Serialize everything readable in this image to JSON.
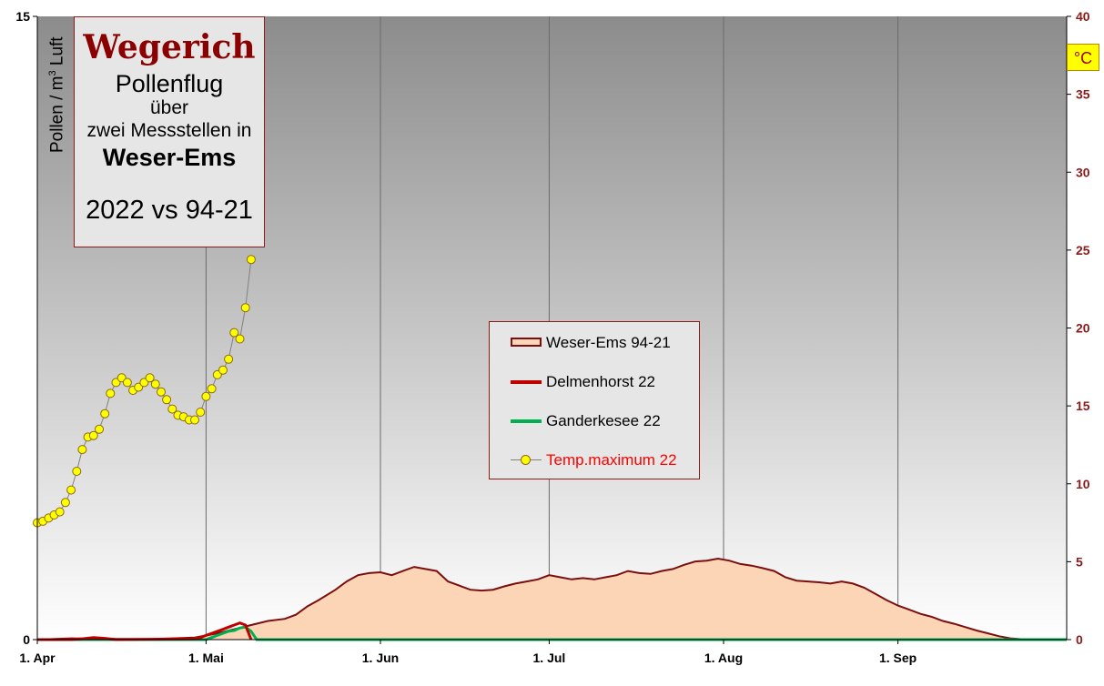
{
  "title_box": {
    "line1": "Wegerich",
    "line2": "Pollenflug",
    "line3": "über",
    "line4": "zwei Messstellen in",
    "line5": "Weser-Ems",
    "line6": "2022 vs 94-21"
  },
  "unit_label": "°C",
  "colors": {
    "avg_fill": "#fbd5b5",
    "avg_line": "#7b0f0f",
    "delmenhorst": "#c00000",
    "ganderkesee": "#00b050",
    "temp_marker": "#ffff00",
    "temp_text": "#ff0000",
    "axis_right": "#8b1a1a"
  },
  "chart_data": {
    "type": "area",
    "ylabel_left_main": "Pollen / m",
    "ylabel_left_sup": "3",
    "ylabel_left_tail": " Luft",
    "ylim_left": [
      0,
      15
    ],
    "yticks_left": [
      "0",
      "15"
    ],
    "ylim_right": [
      0,
      40
    ],
    "yticks_right": [
      "0",
      "5",
      "10",
      "15",
      "20",
      "25",
      "30",
      "35",
      "40"
    ],
    "xlim_day": [
      0,
      183
    ],
    "x_ticks": [
      {
        "label": "1. Apr",
        "day": 0
      },
      {
        "label": "1. Mai",
        "day": 30
      },
      {
        "label": "1. Jun",
        "day": 61
      },
      {
        "label": "1. Jul",
        "day": 91
      },
      {
        "label": "1. Aug",
        "day": 122
      },
      {
        "label": "1. Sep",
        "day": 153
      }
    ],
    "grid": "vertical lines at month starts",
    "legend_position": "center",
    "series": [
      {
        "name": "Weser-Ems 94-21",
        "kind": "area",
        "points": [
          [
            0,
            0
          ],
          [
            6,
            0.03
          ],
          [
            12,
            0.02
          ],
          [
            20,
            0.01
          ],
          [
            28,
            0.05
          ],
          [
            32,
            0.15
          ],
          [
            35,
            0.25
          ],
          [
            38,
            0.35
          ],
          [
            41,
            0.45
          ],
          [
            44,
            0.5
          ],
          [
            46,
            0.6
          ],
          [
            48,
            0.8
          ],
          [
            50,
            0.95
          ],
          [
            53,
            1.2
          ],
          [
            55,
            1.4
          ],
          [
            57,
            1.55
          ],
          [
            59,
            1.6
          ],
          [
            61,
            1.62
          ],
          [
            63,
            1.55
          ],
          [
            65,
            1.65
          ],
          [
            67,
            1.75
          ],
          [
            69,
            1.7
          ],
          [
            71,
            1.65
          ],
          [
            73,
            1.4
          ],
          [
            75,
            1.3
          ],
          [
            77,
            1.2
          ],
          [
            79,
            1.18
          ],
          [
            81,
            1.2
          ],
          [
            83,
            1.28
          ],
          [
            85,
            1.35
          ],
          [
            87,
            1.4
          ],
          [
            89,
            1.45
          ],
          [
            91,
            1.55
          ],
          [
            93,
            1.5
          ],
          [
            95,
            1.45
          ],
          [
            97,
            1.48
          ],
          [
            99,
            1.45
          ],
          [
            101,
            1.5
          ],
          [
            103,
            1.55
          ],
          [
            105,
            1.65
          ],
          [
            107,
            1.6
          ],
          [
            109,
            1.58
          ],
          [
            111,
            1.65
          ],
          [
            113,
            1.7
          ],
          [
            115,
            1.8
          ],
          [
            117,
            1.88
          ],
          [
            119,
            1.9
          ],
          [
            121,
            1.95
          ],
          [
            123,
            1.9
          ],
          [
            125,
            1.82
          ],
          [
            127,
            1.78
          ],
          [
            129,
            1.72
          ],
          [
            131,
            1.65
          ],
          [
            133,
            1.5
          ],
          [
            135,
            1.42
          ],
          [
            137,
            1.4
          ],
          [
            139,
            1.38
          ],
          [
            141,
            1.35
          ],
          [
            143,
            1.4
          ],
          [
            145,
            1.35
          ],
          [
            147,
            1.25
          ],
          [
            149,
            1.1
          ],
          [
            151,
            0.95
          ],
          [
            153,
            0.82
          ],
          [
            155,
            0.72
          ],
          [
            157,
            0.62
          ],
          [
            159,
            0.55
          ],
          [
            161,
            0.45
          ],
          [
            163,
            0.38
          ],
          [
            165,
            0.3
          ],
          [
            167,
            0.22
          ],
          [
            169,
            0.15
          ],
          [
            171,
            0.08
          ],
          [
            173,
            0.03
          ],
          [
            176,
            0
          ],
          [
            183,
            0
          ]
        ]
      },
      {
        "name": "Delmenhorst 22",
        "kind": "line",
        "points": [
          [
            0,
            0
          ],
          [
            6,
            0
          ],
          [
            8,
            0.02
          ],
          [
            10,
            0.05
          ],
          [
            12,
            0.03
          ],
          [
            14,
            0
          ],
          [
            28,
            0.02
          ],
          [
            29,
            0.05
          ],
          [
            30,
            0.1
          ],
          [
            31,
            0.15
          ],
          [
            32,
            0.2
          ],
          [
            33,
            0.25
          ],
          [
            34,
            0.3
          ],
          [
            35,
            0.35
          ],
          [
            36,
            0.4
          ],
          [
            37,
            0.35
          ],
          [
            38,
            0
          ]
        ]
      },
      {
        "name": "Ganderkesee 22",
        "kind": "line",
        "points": [
          [
            0,
            0
          ],
          [
            30,
            0
          ],
          [
            31,
            0.05
          ],
          [
            32,
            0.1
          ],
          [
            33,
            0.15
          ],
          [
            34,
            0.2
          ],
          [
            35,
            0.22
          ],
          [
            36,
            0.28
          ],
          [
            37,
            0.3
          ],
          [
            38,
            0.2
          ],
          [
            39,
            0
          ],
          [
            183,
            0
          ]
        ],
        "note_hidden": false
      },
      {
        "name": "Temp.maximum 22",
        "kind": "line-marker",
        "axis": "right",
        "points": [
          [
            0,
            7.5
          ],
          [
            1,
            7.6
          ],
          [
            2,
            7.8
          ],
          [
            3,
            8.0
          ],
          [
            4,
            8.2
          ],
          [
            5,
            8.8
          ],
          [
            6,
            9.6
          ],
          [
            7,
            10.8
          ],
          [
            8,
            12.2
          ],
          [
            9,
            13.0
          ],
          [
            10,
            13.1
          ],
          [
            11,
            13.5
          ],
          [
            12,
            14.5
          ],
          [
            13,
            15.8
          ],
          [
            14,
            16.5
          ],
          [
            15,
            16.8
          ],
          [
            16,
            16.5
          ],
          [
            17,
            16.0
          ],
          [
            18,
            16.2
          ],
          [
            19,
            16.5
          ],
          [
            20,
            16.8
          ],
          [
            21,
            16.4
          ],
          [
            22,
            15.9
          ],
          [
            23,
            15.4
          ],
          [
            24,
            14.8
          ],
          [
            25,
            14.4
          ],
          [
            26,
            14.3
          ],
          [
            27,
            14.1
          ],
          [
            28,
            14.1
          ],
          [
            29,
            14.6
          ],
          [
            30,
            15.6
          ],
          [
            31,
            16.1
          ],
          [
            32,
            17.0
          ],
          [
            33,
            17.3
          ],
          [
            34,
            18.0
          ],
          [
            35,
            19.7
          ],
          [
            36,
            19.3
          ],
          [
            37,
            21.3
          ],
          [
            38,
            24.4
          ]
        ]
      }
    ]
  }
}
